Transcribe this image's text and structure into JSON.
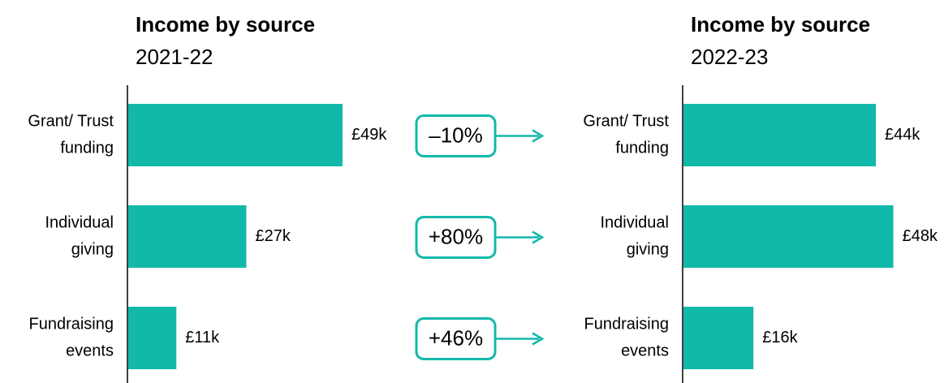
{
  "chart_data": [
    {
      "type": "bar",
      "title": "Income by source",
      "subtitle": "2021-22",
      "categories": [
        [
          "Grant/ Trust",
          "funding"
        ],
        [
          "Individual",
          "giving"
        ],
        [
          "Fundraising",
          "events"
        ]
      ],
      "values": [
        49,
        27,
        11
      ],
      "value_labels": [
        "£49k",
        "£27k",
        "£11k"
      ],
      "color": "#12b8aa"
    },
    {
      "type": "bar",
      "title": "Income by source",
      "subtitle": "2022-23",
      "categories": [
        [
          "Grant/ Trust",
          "funding"
        ],
        [
          "Individual",
          "giving"
        ],
        [
          "Fundraising",
          "events"
        ]
      ],
      "values": [
        44,
        48,
        16
      ],
      "value_labels": [
        "£44k",
        "£48k",
        "£16k"
      ],
      "color": "#12b8aa"
    }
  ],
  "changes": [
    "–10%",
    "+80%",
    "+46%"
  ]
}
